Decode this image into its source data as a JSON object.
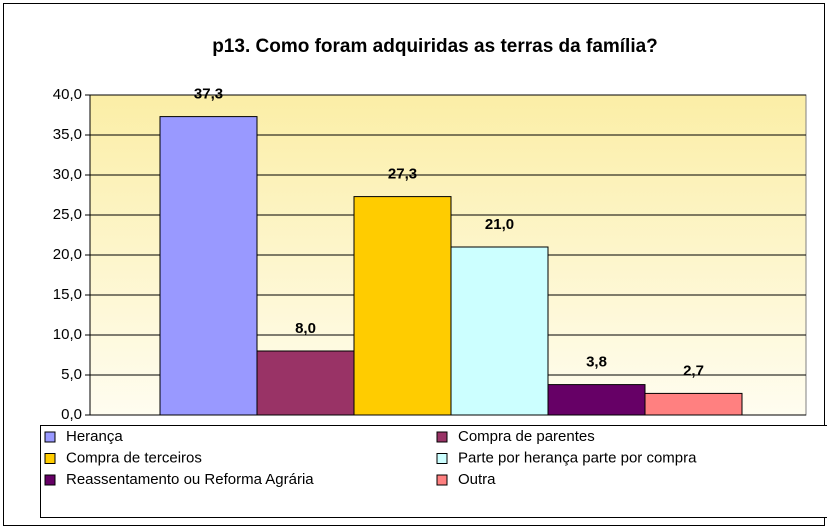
{
  "chart_data": {
    "type": "bar",
    "title": "p13. Como foram adquiridas as terras da família?",
    "series": [
      {
        "name": "Herança",
        "color": "#9999ff",
        "values": [
          37.3
        ],
        "value_labels": [
          "37,3"
        ]
      },
      {
        "name": "Compra de parentes",
        "color": "#993366",
        "values": [
          8.0
        ],
        "value_labels": [
          "8,0"
        ]
      },
      {
        "name": "Compra de terceiros",
        "color": "#ffcc00",
        "values": [
          27.3
        ],
        "value_labels": [
          "27,3"
        ]
      },
      {
        "name": "Parte por herança parte por compra",
        "color": "#ccffff",
        "values": [
          21.0
        ],
        "value_labels": [
          "21,0"
        ]
      },
      {
        "name": "Reassentamento ou Reforma Agrária",
        "color": "#660066",
        "values": [
          3.8
        ],
        "value_labels": [
          "3,8"
        ]
      },
      {
        "name": "Outra",
        "color": "#ff8080",
        "values": [
          2.7
        ],
        "value_labels": [
          "2,7"
        ]
      }
    ],
    "ylim": [
      0,
      40
    ],
    "yticks": [
      {
        "value": 0,
        "label": "0,0"
      },
      {
        "value": 5,
        "label": "5,0"
      },
      {
        "value": 10,
        "label": "10,0"
      },
      {
        "value": 15,
        "label": "15,0"
      },
      {
        "value": 20,
        "label": "20,0"
      },
      {
        "value": 25,
        "label": "25,0"
      },
      {
        "value": 30,
        "label": "30,0"
      },
      {
        "value": 35,
        "label": "35,0"
      },
      {
        "value": 40,
        "label": "40,0"
      }
    ],
    "grid": true,
    "legend": "bottom"
  }
}
